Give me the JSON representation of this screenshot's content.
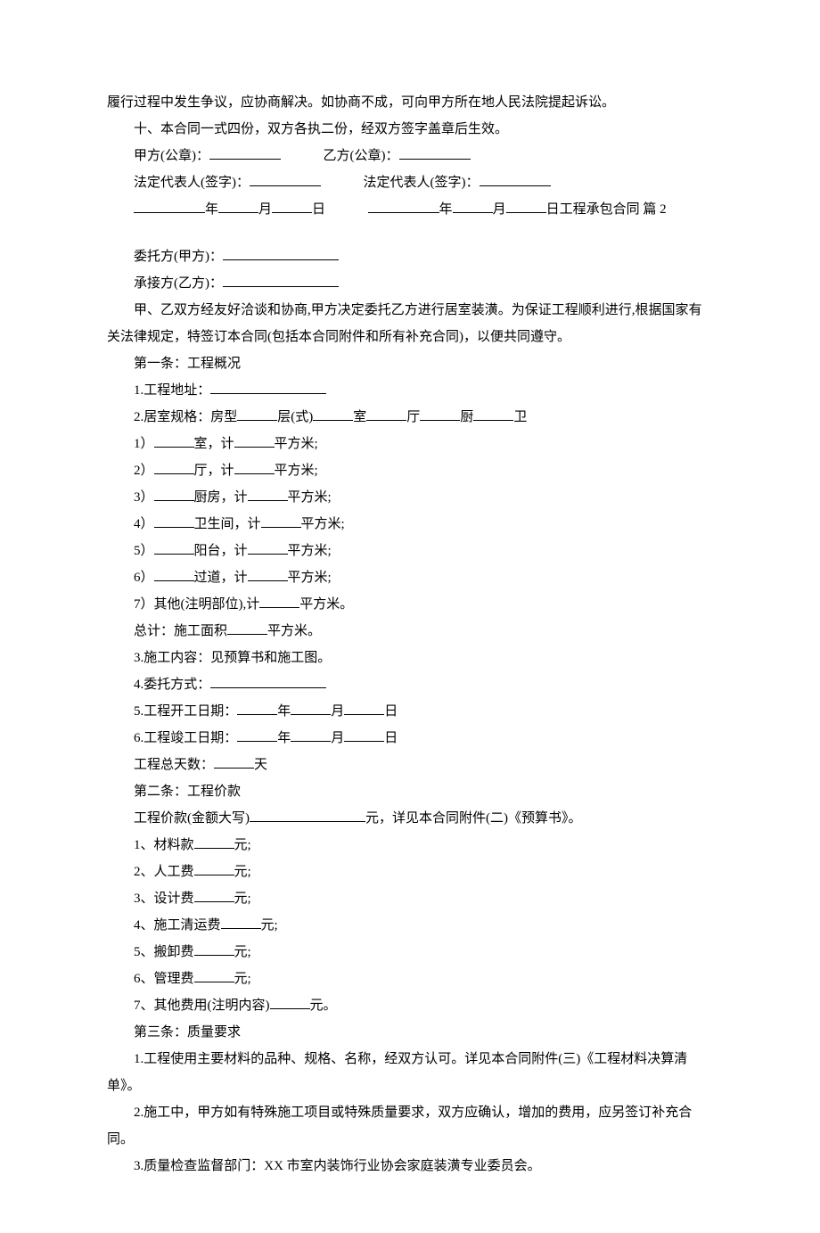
{
  "p1": "履行过程中发生争议，应协商解决。如协商不成，可向甲方所在地人民法院提起诉讼。",
  "p2": "十、本合同一式四份，双方各执二份，经双方签字盖章后生效。",
  "p3a": "甲方(公章)：",
  "p3b": "乙方(公章)：",
  "p4a": "法定代表人(签字)：",
  "p4b": "法定代表人(签字)：",
  "p5_year": "年",
  "p5_month": "月",
  "p5_day": "日",
  "p5_tail": "工程承包合同 篇 2",
  "p6": "委托方(甲方)：",
  "p7": "承接方(乙方)：",
  "p8": "甲、乙双方经友好洽谈和协商,甲方决定委托乙方进行居室装潢。为保证工程顺利进行,根据国家有关法律规定，特签订本合同(包括本合同附件和所有补充合同)，以便共同遵守。",
  "p9": "第一条：工程概况",
  "p10": "1.工程地址：",
  "p11": "2.居室规格：房型",
  "p11_ceng": "层(式)",
  "p11_shi": "室",
  "p11_ting": "厅",
  "p11_chu": "厨",
  "p11_wei": "卫",
  "p12": "1）",
  "p12_b": "室，计",
  "p12_c": "平方米;",
  "p13": "2）",
  "p13_b": "厅，计",
  "p14": "3）",
  "p14_b": "厨房，计",
  "p15": "4）",
  "p15_b": "卫生间，计",
  "p16": "5）",
  "p16_b": "阳台，计",
  "p17": "6）",
  "p17_b": "过道，计",
  "p18": "7）其他(注明部位),计",
  "p19": "总计：施工面积",
  "p19_b": "平方米。",
  "p20": "3.施工内容：见预算书和施工图。",
  "p21": "4.委托方式：",
  "p22": "5.工程开工日期：",
  "p23": "6.工程竣工日期：",
  "p24": "工程总天数：",
  "p24_b": "天",
  "p25": "第二条：工程价款",
  "p26": "工程价款(金额大写)",
  "p26_b": "元，详见本合同附件(二)《预算书》。",
  "p27": "1、材料款",
  "p27_b": "元;",
  "p28": "2、人工费",
  "p29": "3、设计费",
  "p30": "4、施工清运费",
  "p31": "5、搬卸费",
  "p32": "6、管理费",
  "p33": "7、其他费用(注明内容)",
  "p33_b": "元。",
  "p34": "第三条：质量要求",
  "p35": "1.工程使用主要材料的品种、规格、名称，经双方认可。详见本合同附件(三)《工程材料决算清单》。",
  "p36": "2.施工中，甲方如有特殊施工项目或特殊质量要求，双方应确认，增加的费用，应另签订补充合同。",
  "p37": "3.质量检查监督部门：XX 市室内装饰行业协会家庭装潢专业委员会。"
}
